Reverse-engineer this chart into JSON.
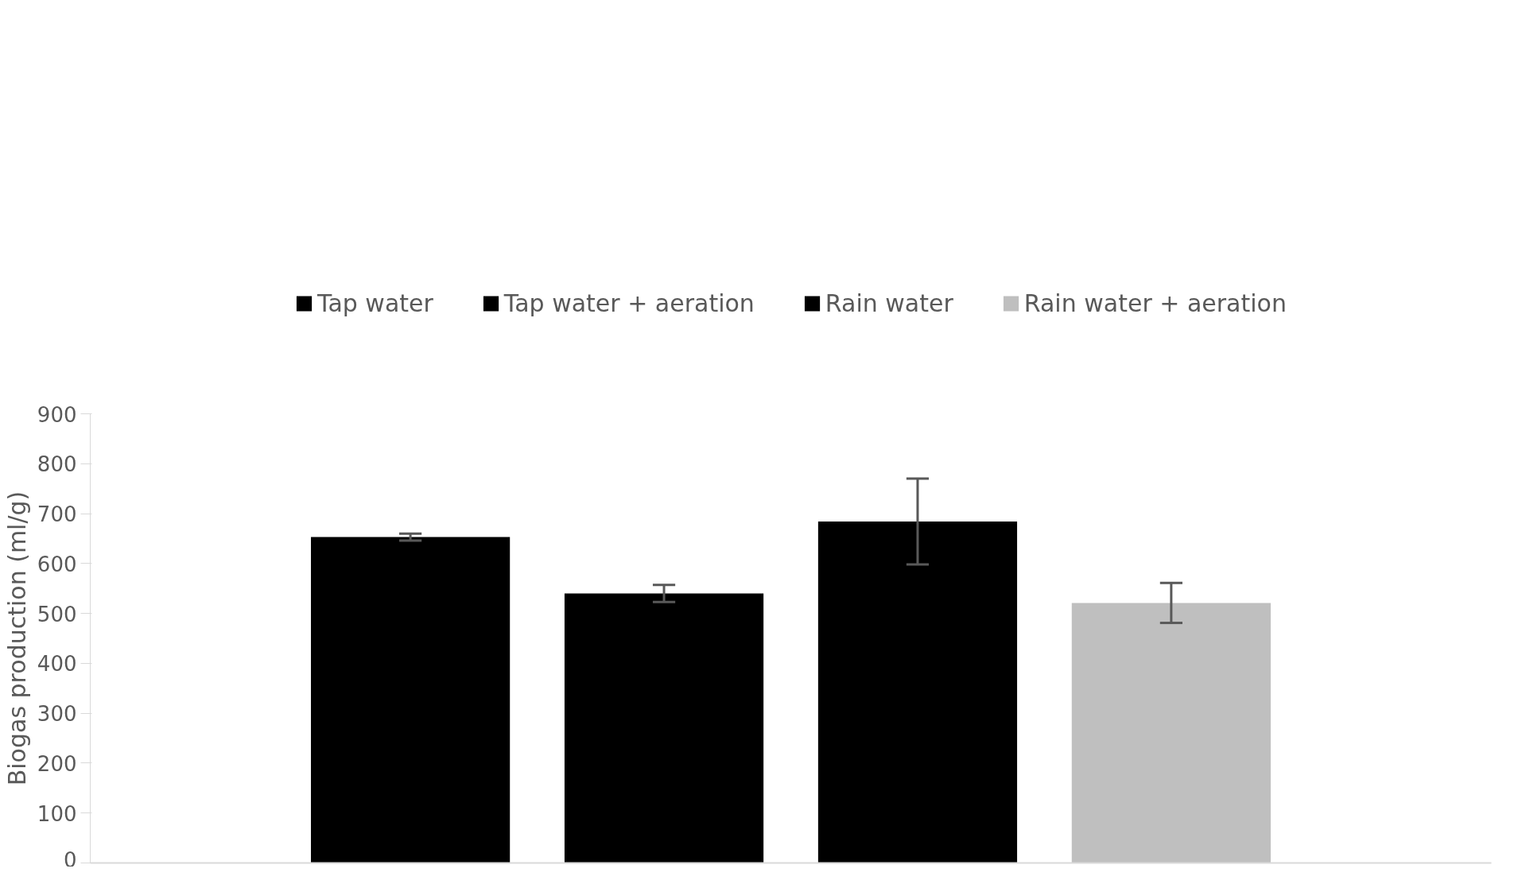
{
  "chart_data": {
    "type": "bar",
    "ylabel": "Biogas production (ml/g)",
    "categories": [
      null
    ],
    "series": [
      {
        "name": "Tap water",
        "color": "#000000",
        "values": [
          653
        ],
        "errors": [
          7
        ]
      },
      {
        "name": "Tap water + aeration",
        "color": "#000000",
        "values": [
          540
        ],
        "errors": [
          17
        ]
      },
      {
        "name": "Rain water",
        "color": "#000000",
        "values": [
          684
        ],
        "errors": [
          86
        ]
      },
      {
        "name": "Rain water + aeration",
        "color": "#bfbfbf",
        "values": [
          521
        ],
        "errors": [
          40
        ]
      }
    ],
    "ylim": [
      0,
      900
    ],
    "yticks": [
      0,
      100,
      200,
      300,
      400,
      500,
      600,
      700,
      800,
      900
    ],
    "grid": false,
    "legend": "top"
  }
}
